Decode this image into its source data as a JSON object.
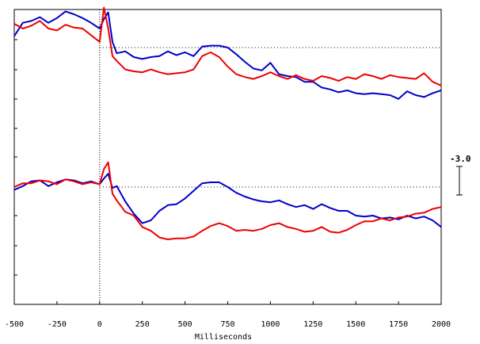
{
  "chart_data": {
    "type": "line",
    "title": "",
    "xlabel": "Milliseconds",
    "ylabel": "",
    "xlim": [
      -500,
      2000
    ],
    "x_ticks": [
      "-500",
      "-250",
      "0",
      "250",
      "500",
      "750",
      "1000",
      "1250",
      "1500",
      "1750",
      "2000"
    ],
    "grid": false,
    "legend": "none",
    "scale_bar_label": "-3.0",
    "x": [
      -500,
      -450,
      -400,
      -350,
      -300,
      -250,
      -200,
      -150,
      -100,
      -50,
      0,
      25,
      50,
      75,
      100,
      150,
      200,
      250,
      300,
      350,
      400,
      450,
      500,
      550,
      600,
      650,
      700,
      750,
      800,
      850,
      900,
      950,
      1000,
      1050,
      1100,
      1150,
      1200,
      1250,
      1300,
      1350,
      1400,
      1450,
      1500,
      1550,
      1600,
      1650,
      1700,
      1750,
      1800,
      1850,
      1900,
      1950,
      2000
    ],
    "panels": [
      {
        "name": "",
        "series": [
          {
            "name": "",
            "color": "#0000cc",
            "values": [
              1.2,
              2.6,
              2.8,
              3.2,
              2.6,
              3.1,
              3.8,
              3.5,
              3.1,
              2.6,
              2.0,
              3.0,
              3.7,
              0.6,
              -0.6,
              -0.4,
              -1.0,
              -1.2,
              -1.0,
              -0.9,
              -0.4,
              -0.8,
              -0.5,
              -0.9,
              0.1,
              0.2,
              0.2,
              0.0,
              -0.7,
              -1.5,
              -2.2,
              -2.4,
              -1.6,
              -2.8,
              -3.0,
              -3.1,
              -3.6,
              -3.6,
              -4.2,
              -4.4,
              -4.7,
              -4.5,
              -4.8,
              -4.9,
              -4.8,
              -4.9,
              -5.0,
              -5.4,
              -4.6,
              -5.0,
              -5.2,
              -4.8,
              -4.5
            ]
          },
          {
            "name": "",
            "color": "#ee0000",
            "values": [
              2.5,
              2.0,
              2.3,
              2.8,
              2.0,
              1.8,
              2.4,
              2.1,
              2.0,
              1.3,
              0.6,
              4.2,
              2.0,
              -0.9,
              -1.4,
              -2.3,
              -2.5,
              -2.6,
              -2.3,
              -2.6,
              -2.8,
              -2.7,
              -2.6,
              -2.3,
              -0.9,
              -0.5,
              -1.0,
              -2.0,
              -2.8,
              -3.1,
              -3.3,
              -3.0,
              -2.6,
              -3.0,
              -3.3,
              -2.9,
              -3.3,
              -3.5,
              -3.0,
              -3.2,
              -3.5,
              -3.1,
              -3.3,
              -2.8,
              -3.0,
              -3.3,
              -2.9,
              -3.1,
              -3.2,
              -3.3,
              -2.7,
              -3.6,
              -4.0
            ]
          }
        ]
      },
      {
        "name": "",
        "series": [
          {
            "name": "",
            "color": "#0000cc",
            "values": [
              -0.3,
              0.1,
              0.6,
              0.7,
              0.1,
              0.5,
              0.8,
              0.7,
              0.4,
              0.6,
              0.3,
              0.9,
              1.4,
              -0.1,
              0.1,
              -1.5,
              -2.8,
              -3.8,
              -3.5,
              -2.5,
              -1.9,
              -1.8,
              -1.2,
              -0.4,
              0.4,
              0.5,
              0.5,
              0.0,
              -0.6,
              -1.0,
              -1.3,
              -1.5,
              -1.6,
              -1.4,
              -1.8,
              -2.1,
              -1.9,
              -2.3,
              -1.8,
              -2.2,
              -2.5,
              -2.5,
              -3.0,
              -3.1,
              -3.0,
              -3.3,
              -3.2,
              -3.4,
              -3.0,
              -3.3,
              -3.1,
              -3.5,
              -4.2
            ]
          },
          {
            "name": "",
            "color": "#ee0000",
            "values": [
              0.0,
              0.4,
              0.4,
              0.7,
              0.6,
              0.3,
              0.8,
              0.6,
              0.3,
              0.5,
              0.3,
              1.9,
              2.6,
              -0.7,
              -1.4,
              -2.6,
              -3.0,
              -4.2,
              -4.6,
              -5.3,
              -5.5,
              -5.4,
              -5.4,
              -5.2,
              -4.6,
              -4.1,
              -3.8,
              -4.1,
              -4.6,
              -4.5,
              -4.6,
              -4.4,
              -4.0,
              -3.8,
              -4.2,
              -4.4,
              -4.7,
              -4.6,
              -4.2,
              -4.7,
              -4.8,
              -4.5,
              -4.0,
              -3.6,
              -3.6,
              -3.3,
              -3.5,
              -3.2,
              -3.1,
              -2.8,
              -2.7,
              -2.3,
              -2.1
            ]
          }
        ]
      }
    ]
  }
}
